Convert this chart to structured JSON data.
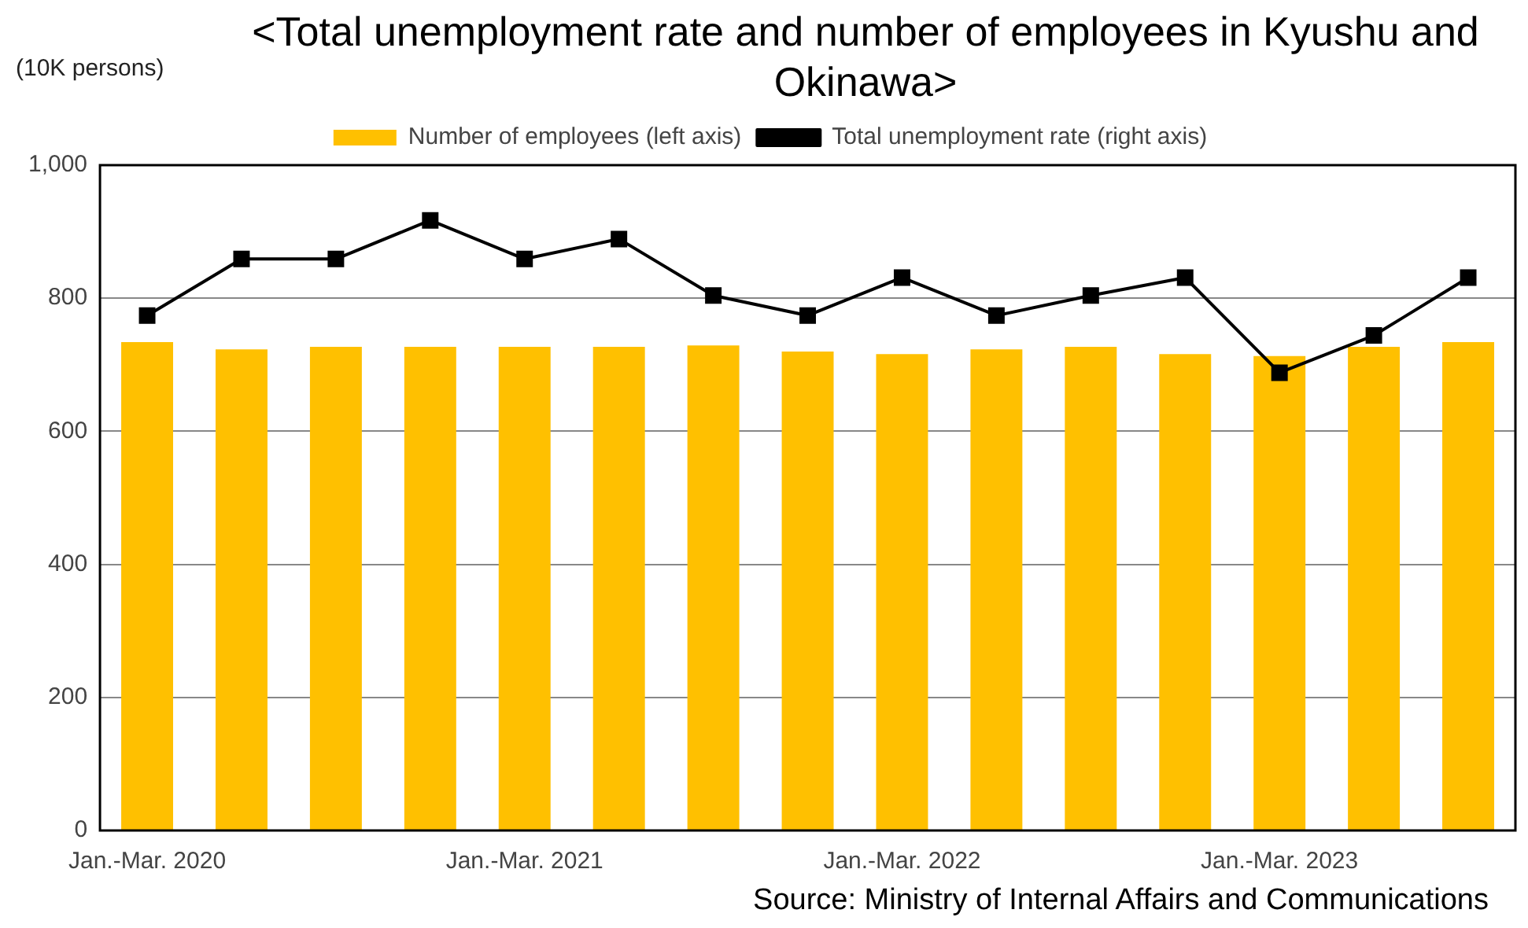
{
  "chart_data": {
    "type": "bar",
    "title": "<Total unemployment rate and number of employees in Kyushu and Okinawa>",
    "ylabel": "(10K persons)",
    "categories": [
      "Jan.-Mar. 2020",
      null,
      null,
      null,
      "Jan.-Mar. 2021",
      null,
      null,
      null,
      "Jan.-Mar. 2022",
      null,
      null,
      null,
      "Jan.-Mar. 2023",
      null,
      null
    ],
    "series": [
      {
        "name": "Number of employees (left axis)",
        "color": "#ffc000",
        "values": [
          734,
          723,
          727,
          727,
          727,
          727,
          729,
          720,
          716,
          723,
          727,
          716,
          713,
          727,
          734
        ]
      },
      {
        "name": "Total unemployment rate (right axis)",
        "type": "line",
        "color": "#000000",
        "marker": "square",
        "values": [
          774,
          859,
          859,
          917,
          859,
          889,
          804,
          774,
          831,
          774,
          804,
          831,
          688,
          744,
          831
        ]
      }
    ],
    "ylim": [
      0,
      1000
    ],
    "yticks": [
      0,
      200,
      400,
      600,
      800,
      {
        "value": 1000,
        "label": "1,000"
      }
    ],
    "grid": "y",
    "legend": "top",
    "annotations": [
      "Source: Ministry of Internal Affairs and Communications"
    ]
  }
}
